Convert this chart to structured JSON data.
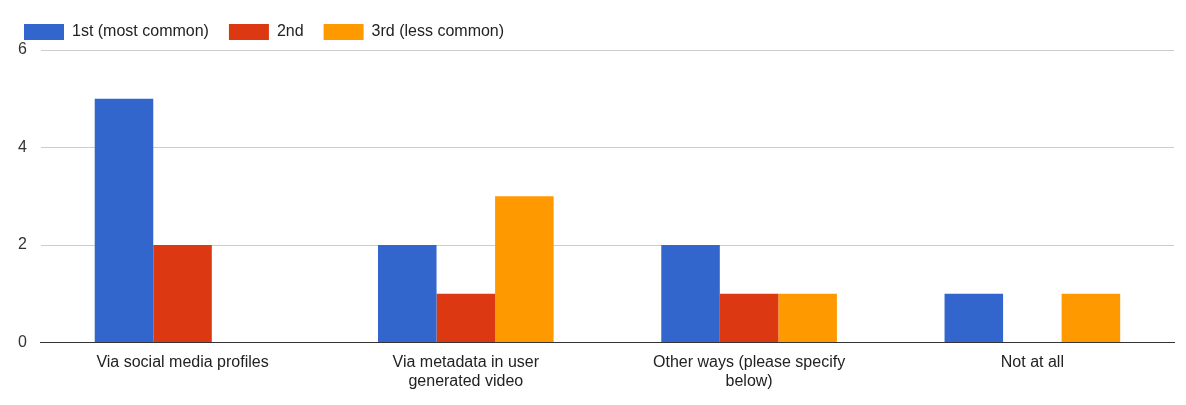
{
  "chart_data": {
    "type": "bar",
    "categories": [
      "Via social media profiles",
      "Via metadata in user generated video",
      "Other ways (please specify below)",
      "Not at all"
    ],
    "series": [
      {
        "name": "1st (most common)",
        "color": "#3366cc",
        "values": [
          5,
          2,
          2,
          1
        ]
      },
      {
        "name": "2nd",
        "color": "#dc3912",
        "values": [
          2,
          1,
          1,
          0
        ]
      },
      {
        "name": "3rd (less common)",
        "color": "#ff9900",
        "values": [
          0,
          3,
          1,
          1
        ]
      }
    ],
    "ylim": [
      0,
      6
    ],
    "yticks": [
      0,
      2,
      4,
      6
    ],
    "grid": "y",
    "legend": "top left"
  }
}
